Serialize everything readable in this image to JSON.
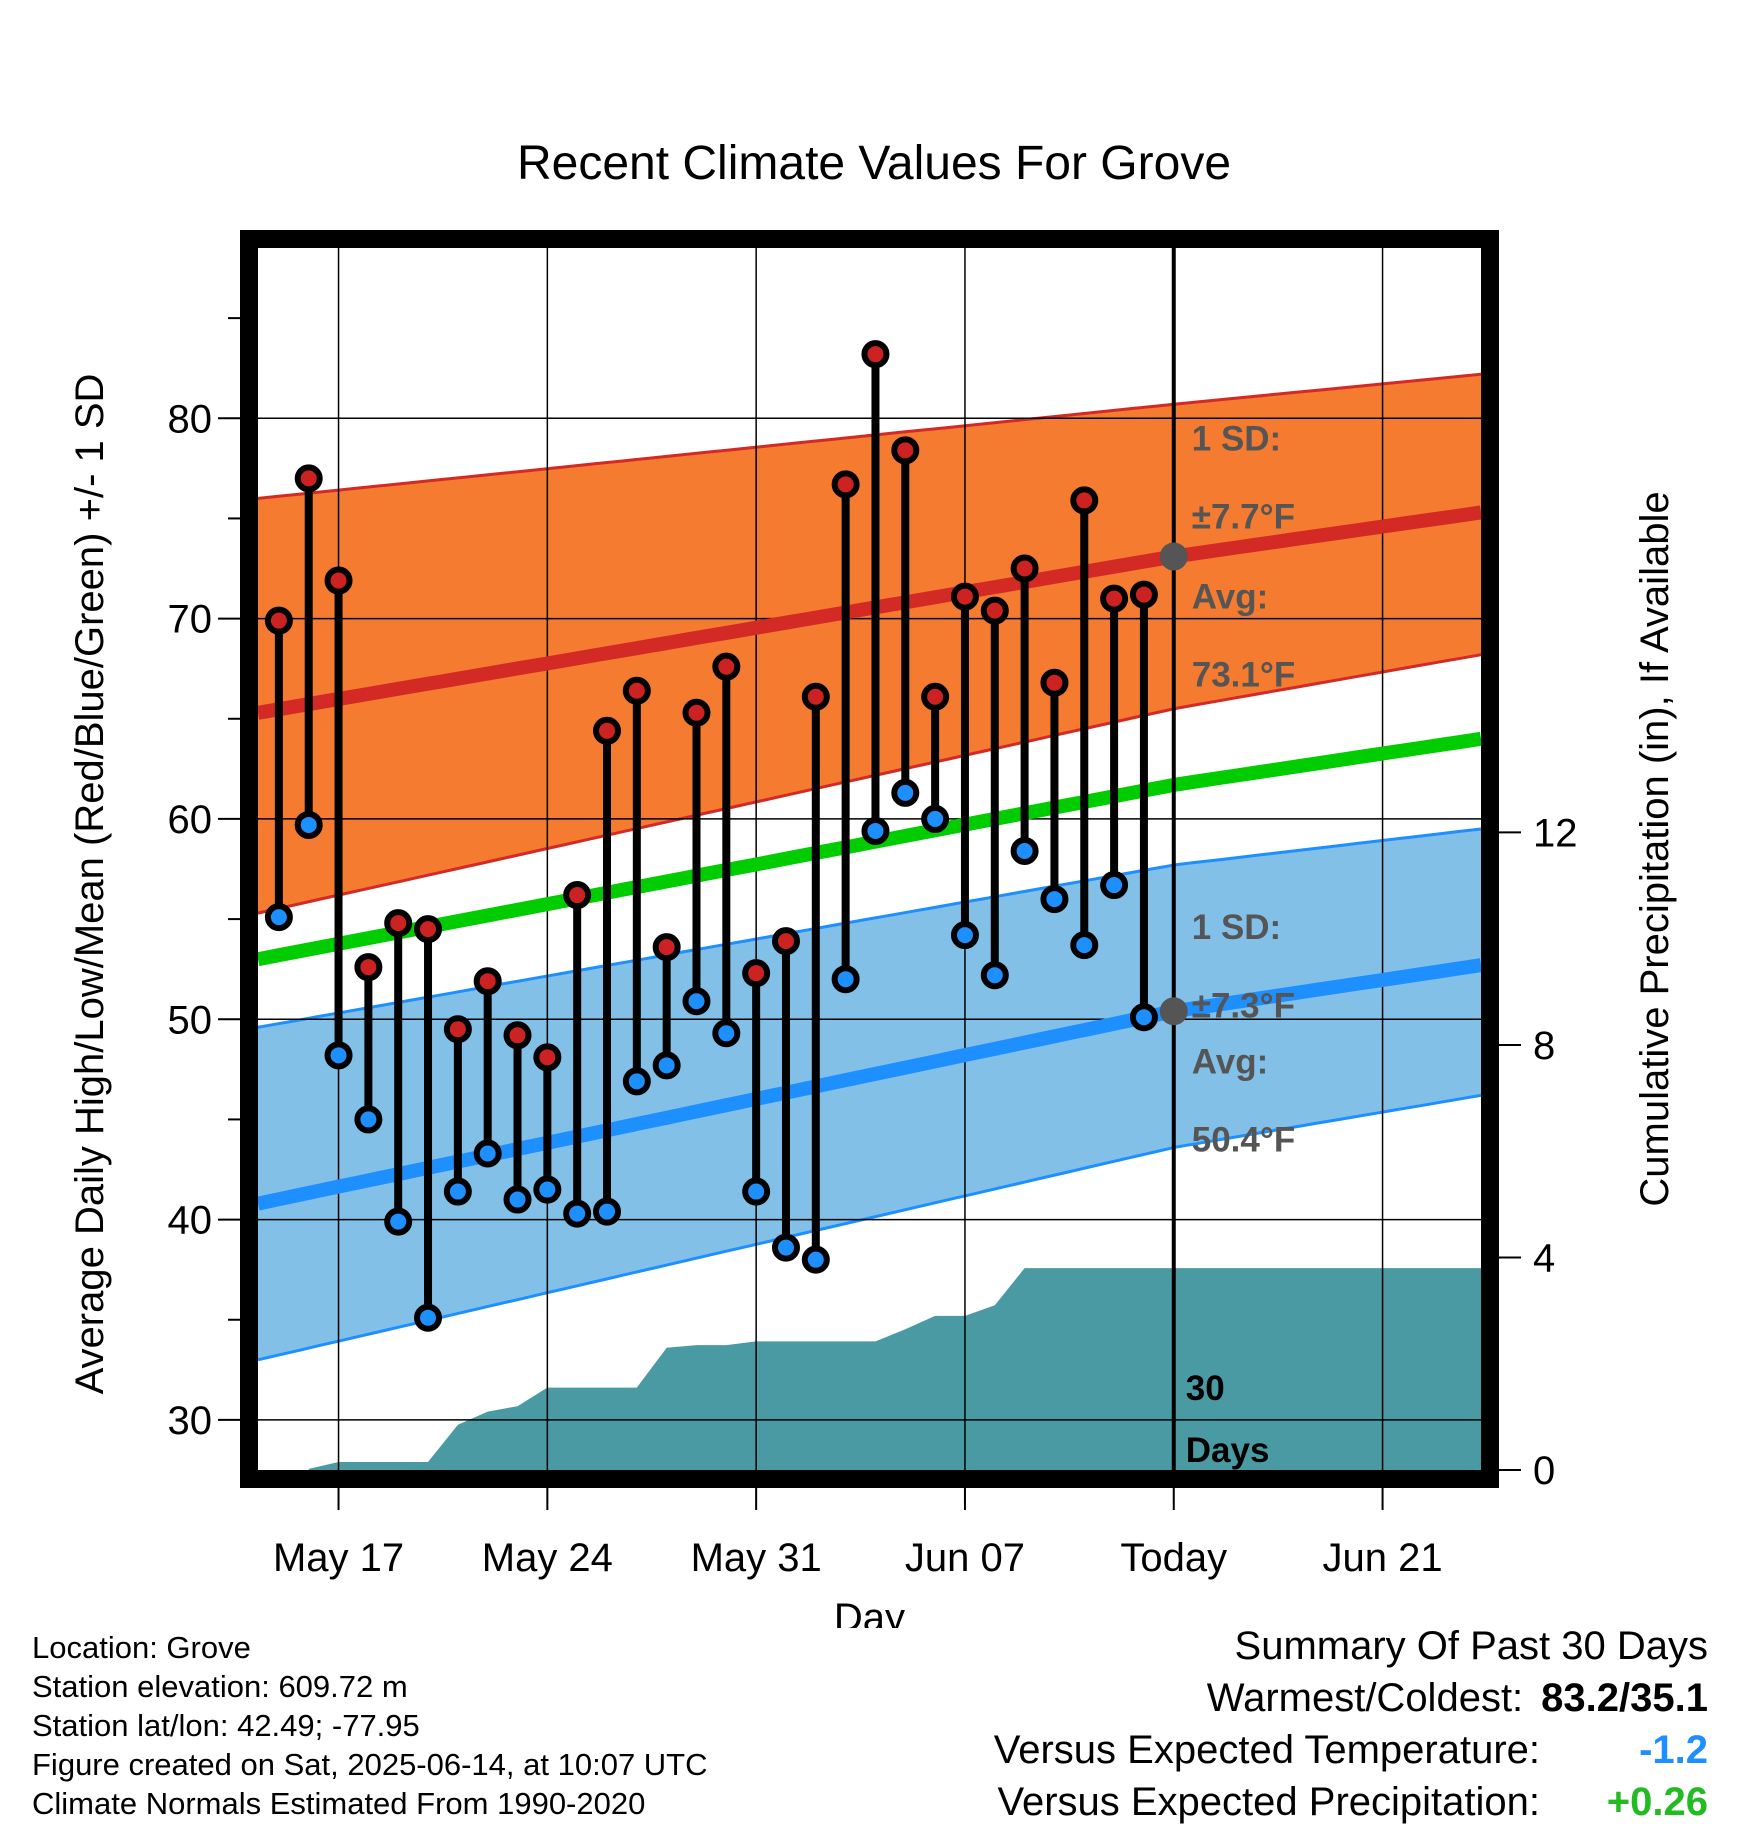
{
  "title": "Recent Climate Values For Grove",
  "xlabel": "Day",
  "ylabel_left": "Average Daily High/Low/Mean (Red/Blue/Green) +/- 1 SD",
  "ylabel_right": "Cumulative Precipitation (in), If Available",
  "annotations": {
    "high_sd_line1": "1 SD:",
    "high_sd_line2": "±7.7°F",
    "high_avg_line1": "Avg:",
    "high_avg_line2": "73.1°F",
    "low_sd_line1": "1 SD:",
    "low_sd_line2": "±7.3°F",
    "low_avg_line1": "Avg:",
    "low_avg_line2": "50.4°F",
    "days_line1": "30",
    "days_line2": "Days"
  },
  "footer": {
    "location": "Location: Grove",
    "elevation": "Station elevation: 609.72 m",
    "latlon": "Station lat/lon: 42.49; -77.95",
    "created": "Figure created on Sat, 2025-06-14, at 10:07 UTC",
    "normals": "Climate Normals Estimated From 1990-2020"
  },
  "summary": {
    "heading": "Summary Of Past 30 Days",
    "warm_cold_label": "Warmest/Coldest:",
    "warm_cold_value": "83.2/35.1",
    "temp_label": "Versus Expected Temperature:",
    "temp_value": "-1.2",
    "precip_label": "Versus Expected Precipitation:",
    "precip_value": "+0.26"
  },
  "colors": {
    "high_band": "#f47b2f",
    "high_avg": "#d42a26",
    "low_band": "#82c0e8",
    "low_avg": "#1e8fff",
    "mean_avg": "#00cc00",
    "precip": "#4a9aa4",
    "high_dot": "#cc2222",
    "low_dot": "#1e8fff",
    "annotation": "#555555",
    "temp_value": "#1e8fff",
    "precip_value": "#22bb22"
  },
  "chart_data": {
    "type": "line",
    "x_unit": "days relative to May 17",
    "xlim": [
      -2.7,
      38.3
    ],
    "ylim": [
      27.5,
      88.5
    ],
    "y2lim": [
      0,
      23
    ],
    "x_ticks": [
      {
        "x": 0,
        "label": "May 17"
      },
      {
        "x": 7,
        "label": "May 24"
      },
      {
        "x": 14,
        "label": "May 31"
      },
      {
        "x": 21,
        "label": "Jun 07"
      },
      {
        "x": 28,
        "label": "Today"
      },
      {
        "x": 35,
        "label": "Jun 21"
      }
    ],
    "y_ticks": [
      30,
      40,
      50,
      60,
      70,
      80
    ],
    "y2_ticks": [
      0,
      4,
      8,
      12
    ],
    "grid": true,
    "today_x": 28,
    "normals": {
      "x": [
        -2.7,
        28,
        38.3
      ],
      "high_avg": [
        65.3,
        73.1,
        75.3
      ],
      "high_upper": [
        76.0,
        80.7,
        82.2
      ],
      "high_lower": [
        55.3,
        65.5,
        68.2
      ],
      "mean_avg": [
        53.0,
        61.7,
        64.0
      ],
      "low_avg": [
        40.8,
        50.4,
        52.7
      ],
      "low_upper": [
        49.6,
        57.7,
        59.5
      ],
      "low_lower": [
        33.0,
        43.6,
        46.2
      ]
    },
    "series": [
      {
        "name": "High",
        "x": [
          -2,
          -1,
          0,
          1,
          2,
          3,
          4,
          5,
          6,
          7,
          8,
          9,
          10,
          11,
          12,
          13,
          14,
          15,
          16,
          17,
          18,
          19,
          20,
          21,
          22,
          23,
          24,
          25,
          26,
          27
        ],
        "values": [
          69.9,
          77.0,
          71.9,
          52.6,
          54.8,
          54.5,
          49.5,
          51.9,
          49.2,
          48.1,
          56.2,
          64.4,
          66.4,
          53.6,
          65.3,
          67.6,
          52.3,
          53.9,
          66.1,
          76.7,
          83.2,
          78.4,
          66.1,
          71.1,
          70.4,
          72.5,
          66.8,
          75.9,
          71.0,
          71.2
        ]
      },
      {
        "name": "Low",
        "x": [
          -2,
          -1,
          0,
          1,
          2,
          3,
          4,
          5,
          6,
          7,
          8,
          9,
          10,
          11,
          12,
          13,
          14,
          15,
          16,
          17,
          18,
          19,
          20,
          21,
          22,
          23,
          24,
          25,
          26,
          27
        ],
        "values": [
          55.1,
          59.7,
          48.2,
          45.0,
          39.9,
          35.1,
          41.4,
          43.3,
          41.0,
          41.5,
          40.3,
          40.4,
          46.9,
          47.7,
          50.9,
          49.3,
          41.4,
          38.6,
          38.0,
          52.0,
          59.4,
          61.3,
          60.0,
          54.2,
          52.2,
          58.4,
          56.0,
          53.7,
          56.7,
          50.1
        ]
      }
    ],
    "precip_x": [
      -1,
      0,
      3,
      4,
      5,
      6,
      7,
      8,
      9,
      10,
      11,
      12,
      13,
      14,
      15,
      16,
      17,
      18,
      19,
      20,
      21,
      22,
      23,
      24,
      25,
      26,
      27,
      28,
      38.3
    ],
    "precip_y": [
      0.02,
      0.15,
      0.15,
      0.85,
      1.1,
      1.2,
      1.55,
      1.55,
      1.55,
      1.55,
      2.3,
      2.35,
      2.35,
      2.42,
      2.42,
      2.42,
      2.42,
      2.42,
      2.65,
      2.9,
      2.9,
      3.1,
      3.8,
      3.8,
      3.8,
      3.8,
      3.8,
      3.8,
      3.8
    ]
  }
}
